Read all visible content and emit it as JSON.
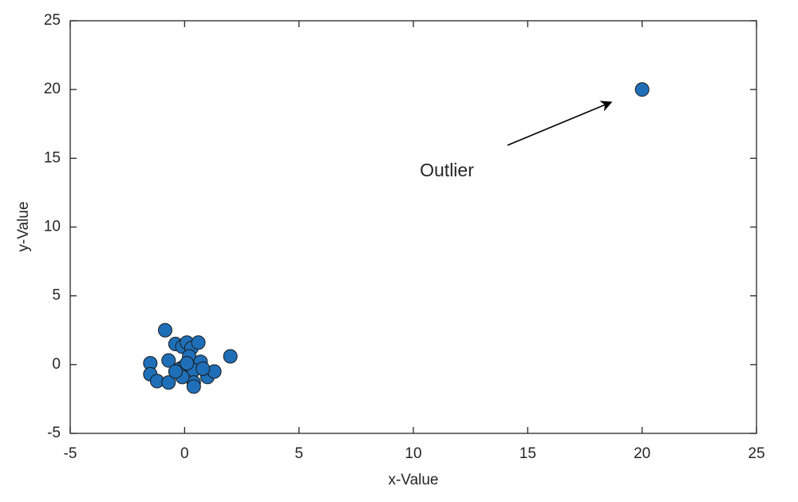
{
  "chart_data": {
    "type": "scatter",
    "x_label": "x-Value",
    "y_label": "y-Value",
    "annotation": "Outlier",
    "color": "#1f6fb8",
    "edge_color": "#1a1a1a",
    "x": [
      -0.85,
      2.0,
      20,
      -1.5,
      -1.5,
      -1.2,
      -0.7,
      -0.7,
      -0.4,
      -0.1,
      0.1,
      0.3,
      0.6,
      0.2,
      0.7,
      -0.2,
      0.0,
      0.4,
      0.4,
      0.4,
      1.0,
      1.3,
      -0.1,
      0.8,
      -0.4,
      0.1
    ],
    "values": [
      2.5,
      0.6,
      20,
      0.1,
      -0.7,
      -1.2,
      -1.3,
      0.3,
      1.5,
      1.3,
      1.6,
      1.2,
      1.6,
      0.6,
      0.2,
      -0.3,
      -0.1,
      -0.4,
      -1.3,
      -1.6,
      -0.9,
      -0.5,
      -0.9,
      -0.3,
      -0.5,
      0.1
    ],
    "xlim": [
      -5,
      25
    ],
    "ylim": [
      -5,
      25
    ],
    "xticks": [
      -5,
      0,
      5,
      10,
      15,
      20,
      25
    ],
    "yticks": [
      -5,
      0,
      5,
      10,
      15,
      20,
      25
    ]
  }
}
